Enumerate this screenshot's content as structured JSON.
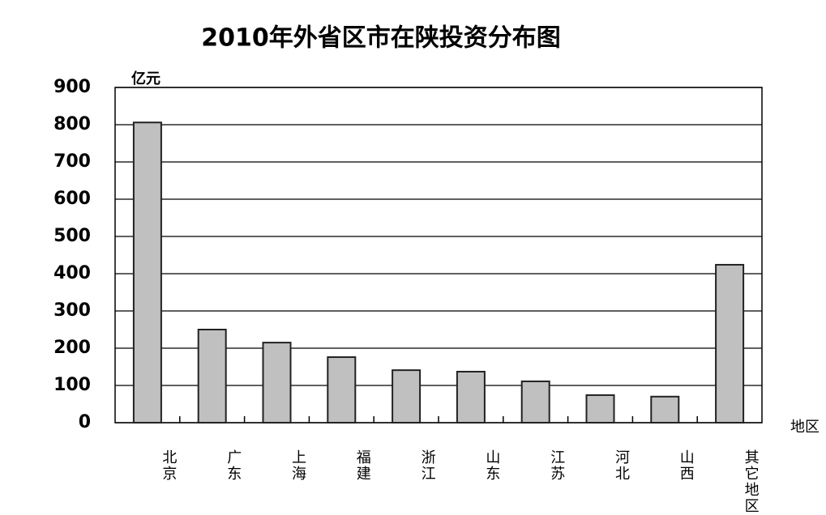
{
  "chart_data": {
    "type": "bar",
    "title": "2010年外省区市在陕投资分布图",
    "y_axis_label": "亿元",
    "x_axis_label": "地区",
    "categories": [
      "北京",
      "广东",
      "上海",
      "福建",
      "浙江",
      "山东",
      "江苏",
      "河北",
      "山西",
      "其它地区"
    ],
    "values": [
      806,
      250,
      215,
      176,
      141,
      137,
      111,
      74,
      70,
      424
    ],
    "color": "#c0c0c0",
    "ylim": [
      0,
      900
    ],
    "yticks": [
      0,
      100,
      200,
      300,
      400,
      500,
      600,
      700,
      800,
      900
    ],
    "grid": true
  }
}
